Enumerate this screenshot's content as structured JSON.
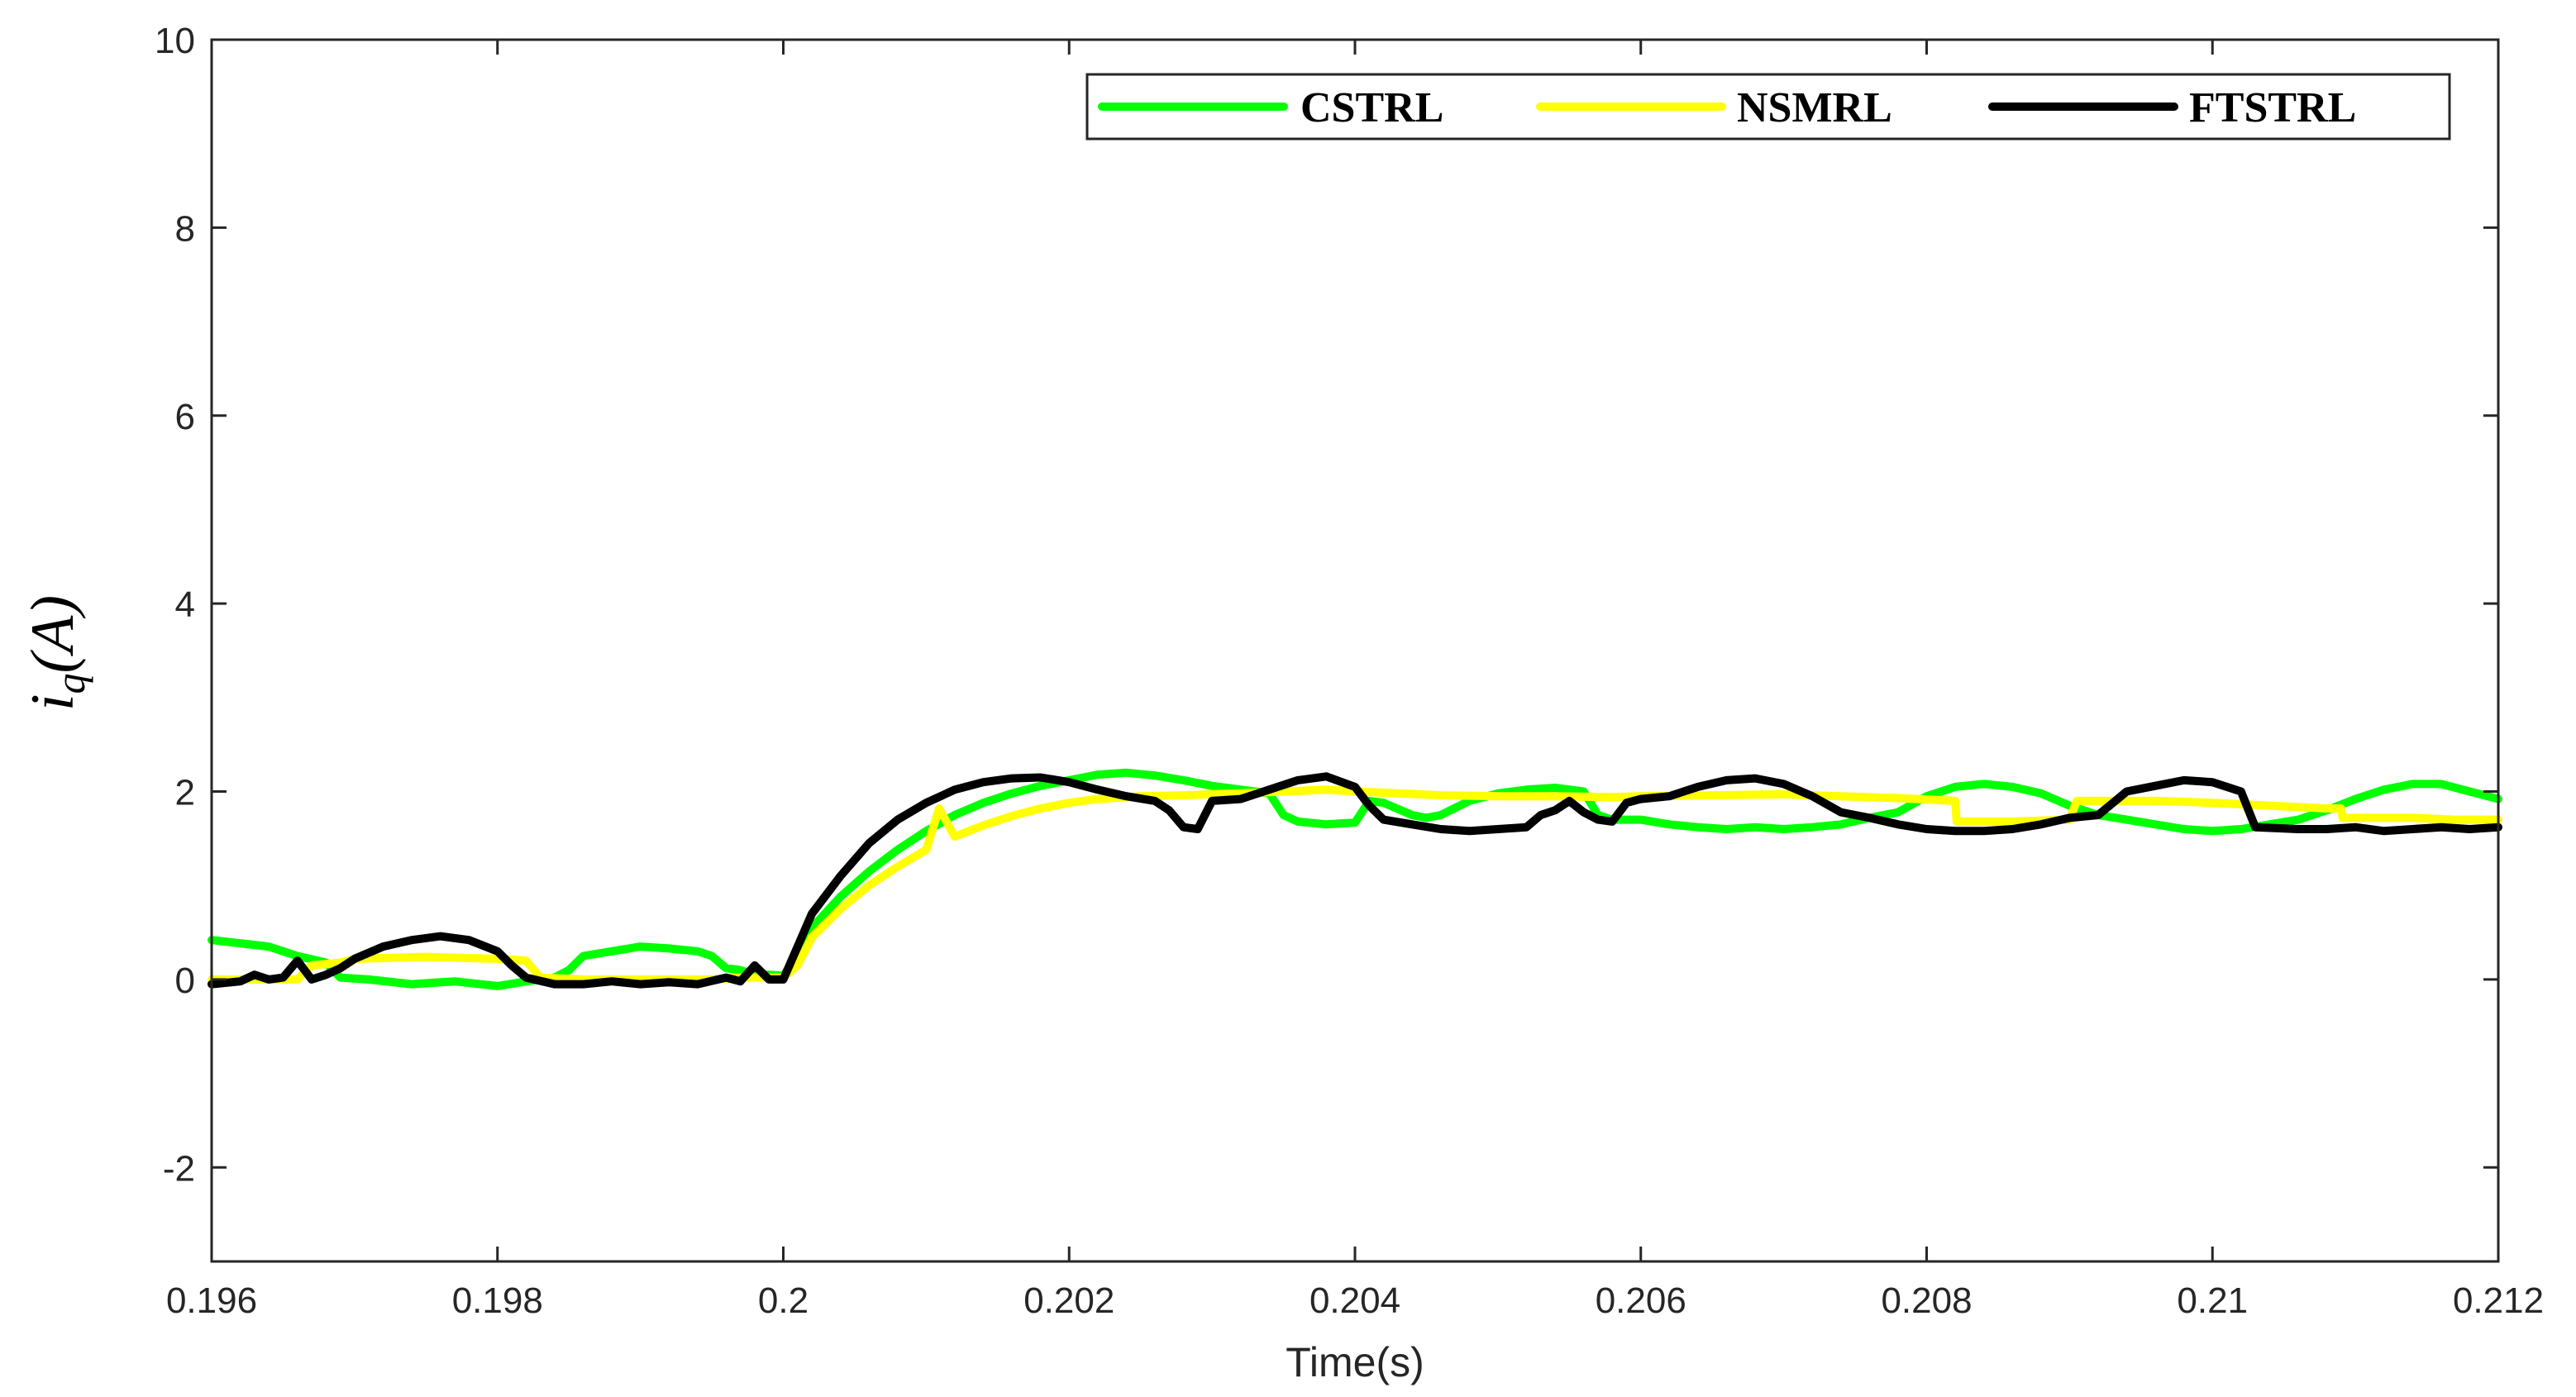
{
  "chart_data": {
    "type": "line",
    "xlabel": "Time(s)",
    "ylabel": {
      "main": "i",
      "sub": "q",
      "suffix": "(A)"
    },
    "xlim": [
      0.196,
      0.212
    ],
    "ylim": [
      -3,
      10
    ],
    "xticks": [
      0.196,
      0.198,
      0.2,
      0.202,
      0.204,
      0.206,
      0.208,
      0.21,
      0.212
    ],
    "xtick_labels": [
      "0.196",
      "0.198",
      "0.2",
      "0.202",
      "0.204",
      "0.206",
      "0.208",
      "0.21",
      "0.212"
    ],
    "yticks": [
      -2,
      0,
      2,
      4,
      6,
      8,
      10
    ],
    "ytick_labels": [
      "-2",
      "0",
      "2",
      "4",
      "6",
      "8",
      "10"
    ],
    "grid": false,
    "legend": "top-right",
    "series": [
      {
        "name": "CSTRL",
        "color": "#00ff00",
        "points": [
          [
            0.196,
            0.42
          ],
          [
            0.1964,
            0.35
          ],
          [
            0.1966,
            0.25
          ],
          [
            0.1968,
            0.18
          ],
          [
            0.1969,
            0.02
          ],
          [
            0.1971,
            0.0
          ],
          [
            0.1974,
            -0.05
          ],
          [
            0.1977,
            -0.02
          ],
          [
            0.198,
            -0.07
          ],
          [
            0.1982,
            -0.02
          ],
          [
            0.1984,
            0.02
          ],
          [
            0.1985,
            0.1
          ],
          [
            0.1986,
            0.25
          ],
          [
            0.1988,
            0.3
          ],
          [
            0.199,
            0.35
          ],
          [
            0.1992,
            0.33
          ],
          [
            0.1994,
            0.3
          ],
          [
            0.1995,
            0.25
          ],
          [
            0.1996,
            0.12
          ],
          [
            0.1997,
            0.1
          ],
          [
            0.1998,
            0.05
          ],
          [
            0.1999,
            0.05
          ],
          [
            0.2,
            0.04
          ],
          [
            0.2001,
            0.25
          ],
          [
            0.2002,
            0.55
          ],
          [
            0.2004,
            0.88
          ],
          [
            0.2006,
            1.15
          ],
          [
            0.2008,
            1.38
          ],
          [
            0.201,
            1.58
          ],
          [
            0.2012,
            1.75
          ],
          [
            0.2014,
            1.88
          ],
          [
            0.2016,
            1.98
          ],
          [
            0.2018,
            2.06
          ],
          [
            0.202,
            2.12
          ],
          [
            0.2022,
            2.18
          ],
          [
            0.2024,
            2.2
          ],
          [
            0.2026,
            2.17
          ],
          [
            0.2028,
            2.12
          ],
          [
            0.203,
            2.06
          ],
          [
            0.2032,
            2.02
          ],
          [
            0.2034,
            1.98
          ],
          [
            0.2035,
            1.75
          ],
          [
            0.2036,
            1.68
          ],
          [
            0.2038,
            1.65
          ],
          [
            0.204,
            1.67
          ],
          [
            0.2041,
            1.9
          ],
          [
            0.2042,
            1.88
          ],
          [
            0.2044,
            1.75
          ],
          [
            0.2045,
            1.72
          ],
          [
            0.2046,
            1.75
          ],
          [
            0.2048,
            1.9
          ],
          [
            0.205,
            1.98
          ],
          [
            0.2052,
            2.02
          ],
          [
            0.2054,
            2.04
          ],
          [
            0.2056,
            2.0
          ],
          [
            0.2057,
            1.75
          ],
          [
            0.2058,
            1.7
          ],
          [
            0.206,
            1.7
          ],
          [
            0.2062,
            1.65
          ],
          [
            0.2064,
            1.62
          ],
          [
            0.2066,
            1.6
          ],
          [
            0.2068,
            1.62
          ],
          [
            0.207,
            1.6
          ],
          [
            0.2072,
            1.62
          ],
          [
            0.2074,
            1.65
          ],
          [
            0.2076,
            1.72
          ],
          [
            0.2078,
            1.78
          ],
          [
            0.208,
            1.95
          ],
          [
            0.2082,
            2.05
          ],
          [
            0.2084,
            2.08
          ],
          [
            0.2086,
            2.05
          ],
          [
            0.2088,
            1.98
          ],
          [
            0.209,
            1.85
          ],
          [
            0.2092,
            1.75
          ],
          [
            0.2094,
            1.7
          ],
          [
            0.2096,
            1.65
          ],
          [
            0.2098,
            1.6
          ],
          [
            0.21,
            1.58
          ],
          [
            0.2102,
            1.6
          ],
          [
            0.2104,
            1.65
          ],
          [
            0.2106,
            1.7
          ],
          [
            0.2108,
            1.8
          ],
          [
            0.211,
            1.92
          ],
          [
            0.2112,
            2.02
          ],
          [
            0.2114,
            2.08
          ],
          [
            0.2116,
            2.08
          ],
          [
            0.2118,
            2.0
          ],
          [
            0.212,
            1.92
          ]
        ]
      },
      {
        "name": "NSMRL",
        "color": "#ffff00",
        "points": [
          [
            0.196,
            0.0
          ],
          [
            0.1966,
            0.0
          ],
          [
            0.1967,
            0.15
          ],
          [
            0.1969,
            0.18
          ],
          [
            0.197,
            0.22
          ],
          [
            0.1975,
            0.24
          ],
          [
            0.198,
            0.22
          ],
          [
            0.1982,
            0.2
          ],
          [
            0.1983,
            0.02
          ],
          [
            0.1986,
            0.0
          ],
          [
            0.1992,
            0.0
          ],
          [
            0.1995,
            0.0
          ],
          [
            0.1997,
            0.02
          ],
          [
            0.2,
            0.02
          ],
          [
            0.2001,
            0.15
          ],
          [
            0.2002,
            0.45
          ],
          [
            0.2004,
            0.75
          ],
          [
            0.2006,
            1.0
          ],
          [
            0.2008,
            1.2
          ],
          [
            0.201,
            1.38
          ],
          [
            0.2012,
            1.52
          ],
          [
            0.2014,
            1.64
          ],
          [
            0.2016,
            1.74
          ],
          [
            0.2018,
            1.82
          ],
          [
            0.202,
            1.88
          ],
          [
            0.2022,
            1.92
          ],
          [
            0.2025,
            1.95
          ],
          [
            0.2028,
            1.96
          ],
          [
            0.203,
            1.97
          ],
          [
            0.2032,
            1.98
          ],
          [
            0.2035,
            2.0
          ],
          [
            0.2038,
            2.02
          ],
          [
            0.204,
            2.0
          ],
          [
            0.2043,
            1.98
          ],
          [
            0.2046,
            1.96
          ],
          [
            0.205,
            1.95
          ],
          [
            0.2054,
            1.95
          ],
          [
            0.2058,
            1.94
          ],
          [
            0.206,
            1.95
          ],
          [
            0.2065,
            1.96
          ],
          [
            0.207,
            1.97
          ],
          [
            0.2074,
            1.95
          ],
          [
            0.2078,
            1.93
          ],
          [
            0.2082,
            1.9
          ],
          [
            0.20821,
            1.68
          ],
          [
            0.2086,
            1.68
          ],
          [
            0.209,
            1.7
          ],
          [
            0.20905,
            1.9
          ],
          [
            0.2096,
            1.9
          ],
          [
            0.21,
            1.88
          ],
          [
            0.2104,
            1.85
          ],
          [
            0.2108,
            1.82
          ],
          [
            0.20109,
            1.82
          ],
          [
            0.2109,
            1.82
          ],
          [
            0.21091,
            1.72
          ],
          [
            0.2114,
            1.72
          ],
          [
            0.2117,
            1.7
          ],
          [
            0.212,
            1.7
          ]
        ]
      },
      {
        "name": "FTSTRL",
        "color": "#000000",
        "points": [
          [
            0.196,
            -0.05
          ],
          [
            0.1962,
            -0.02
          ],
          [
            0.1963,
            0.05
          ],
          [
            0.1964,
            0.0
          ],
          [
            0.1965,
            0.02
          ],
          [
            0.1966,
            0.2
          ],
          [
            0.1967,
            0.0
          ],
          [
            0.1968,
            0.05
          ],
          [
            0.1969,
            0.12
          ],
          [
            0.197,
            0.22
          ],
          [
            0.1972,
            0.35
          ],
          [
            0.1974,
            0.42
          ],
          [
            0.1976,
            0.46
          ],
          [
            0.1978,
            0.42
          ],
          [
            0.198,
            0.3
          ],
          [
            0.1981,
            0.15
          ],
          [
            0.1982,
            0.02
          ],
          [
            0.1984,
            -0.05
          ],
          [
            0.1986,
            -0.05
          ],
          [
            0.1988,
            -0.02
          ],
          [
            0.199,
            -0.05
          ],
          [
            0.1992,
            -0.03
          ],
          [
            0.1994,
            -0.05
          ],
          [
            0.1996,
            0.02
          ],
          [
            0.1997,
            -0.02
          ],
          [
            0.1998,
            0.15
          ],
          [
            0.1999,
            0.0
          ],
          [
            0.2,
            0.0
          ],
          [
            0.2001,
            0.35
          ],
          [
            0.2002,
            0.7
          ],
          [
            0.2004,
            1.1
          ],
          [
            0.2006,
            1.45
          ],
          [
            0.2008,
            1.7
          ],
          [
            0.201,
            1.88
          ],
          [
            0.2012,
            2.02
          ],
          [
            0.2014,
            2.1
          ],
          [
            0.2016,
            2.14
          ],
          [
            0.2018,
            2.15
          ],
          [
            0.202,
            2.1
          ],
          [
            0.2022,
            2.02
          ],
          [
            0.2024,
            1.95
          ],
          [
            0.2026,
            1.9
          ],
          [
            0.2027,
            1.8
          ],
          [
            0.2028,
            1.62
          ],
          [
            0.2029,
            1.6
          ],
          [
            0.203,
            1.9
          ],
          [
            0.2032,
            1.92
          ],
          [
            0.2034,
            2.02
          ],
          [
            0.2036,
            2.12
          ],
          [
            0.2038,
            2.16
          ],
          [
            0.204,
            2.05
          ],
          [
            0.2041,
            1.85
          ],
          [
            0.2042,
            1.7
          ],
          [
            0.2044,
            1.65
          ],
          [
            0.2046,
            1.6
          ],
          [
            0.2048,
            1.58
          ],
          [
            0.205,
            1.6
          ],
          [
            0.2052,
            1.62
          ],
          [
            0.2053,
            1.75
          ],
          [
            0.2054,
            1.8
          ],
          [
            0.2055,
            1.9
          ],
          [
            0.2056,
            1.78
          ],
          [
            0.2057,
            1.7
          ],
          [
            0.2058,
            1.68
          ],
          [
            0.2059,
            1.88
          ],
          [
            0.206,
            1.92
          ],
          [
            0.2062,
            1.95
          ],
          [
            0.2064,
            2.05
          ],
          [
            0.2066,
            2.12
          ],
          [
            0.2068,
            2.14
          ],
          [
            0.207,
            2.08
          ],
          [
            0.2072,
            1.95
          ],
          [
            0.2074,
            1.78
          ],
          [
            0.2076,
            1.72
          ],
          [
            0.2078,
            1.65
          ],
          [
            0.208,
            1.6
          ],
          [
            0.2082,
            1.58
          ],
          [
            0.2084,
            1.58
          ],
          [
            0.2086,
            1.6
          ],
          [
            0.2088,
            1.65
          ],
          [
            0.209,
            1.72
          ],
          [
            0.2092,
            1.75
          ],
          [
            0.2094,
            2.0
          ],
          [
            0.2096,
            2.06
          ],
          [
            0.2098,
            2.12
          ],
          [
            0.21,
            2.1
          ],
          [
            0.2102,
            2.0
          ],
          [
            0.2103,
            1.62
          ],
          [
            0.2106,
            1.6
          ],
          [
            0.2108,
            1.6
          ],
          [
            0.211,
            1.62
          ],
          [
            0.2112,
            1.58
          ],
          [
            0.2114,
            1.6
          ],
          [
            0.2116,
            1.62
          ],
          [
            0.2118,
            1.6
          ],
          [
            0.212,
            1.62
          ]
        ]
      }
    ]
  }
}
